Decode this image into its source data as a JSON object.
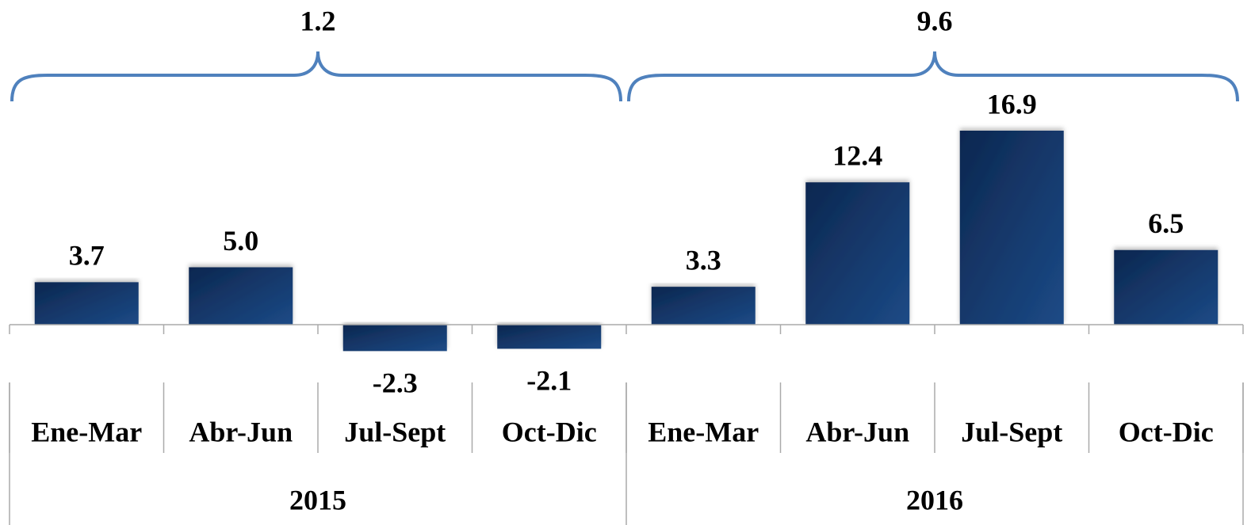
{
  "chart_data": {
    "type": "bar",
    "categories": [
      "Ene-Mar",
      "Abr-Jun",
      "Jul-Sept",
      "Oct-Dic",
      "Ene-Mar",
      "Abr-Jun",
      "Jul-Sept",
      "Oct-Dic"
    ],
    "values": [
      3.7,
      5.0,
      -2.3,
      -2.1,
      3.3,
      12.4,
      16.9,
      6.5
    ],
    "value_labels": [
      "3.7",
      "5.0",
      "-2.3",
      "-2.1",
      "3.3",
      "12.4",
      "16.9",
      "6.5"
    ],
    "color": "#153e73",
    "groups": [
      {
        "name": "2015",
        "annotation": "1.2"
      },
      {
        "name": "2016",
        "annotation": "9.6"
      }
    ],
    "brace_color": "#4f81bd"
  }
}
